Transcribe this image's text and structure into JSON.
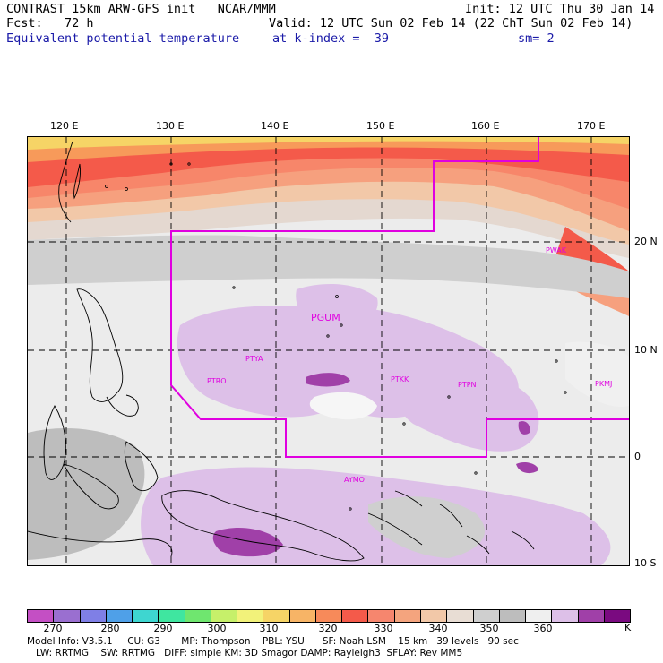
{
  "header": {
    "title": "CONTRAST 15km ARW-GFS init   NCAR/MMM",
    "init": "Init: 12 UTC Thu 30 Jan 14",
    "fcst": "Fcst:   72 h",
    "valid": "Valid: 12 UTC Sun 02 Feb 14 (22 ChT Sun 02 Feb 14)",
    "field": "Equivalent potential temperature",
    "level": "at k-index =  39",
    "sm": "sm= 2"
  },
  "map": {
    "lon_ticks": [
      "120 E",
      "130 E",
      "140 E",
      "150 E",
      "160 E",
      "170 E"
    ],
    "lat_ticks": [
      "20 N",
      "10 N",
      "0",
      "10 S"
    ],
    "stations": [
      {
        "id": "PGUM",
        "label": "PGUM"
      },
      {
        "id": "PWAK",
        "label": "PWAK"
      },
      {
        "id": "PTYA",
        "label": "PTYA"
      },
      {
        "id": "PTRO",
        "label": "PTRO"
      },
      {
        "id": "PTKK",
        "label": "PTKK"
      },
      {
        "id": "PTPN",
        "label": "PTPN"
      },
      {
        "id": "PKMJ",
        "label": "PKMJ"
      },
      {
        "id": "AYMO",
        "label": "AYMO"
      }
    ],
    "domain_color": "#e000e0"
  },
  "colorbar": {
    "colors": [
      "#c44fc4",
      "#9a6fd0",
      "#7f7fe6",
      "#4fa0e8",
      "#3ed6d0",
      "#3fe6a0",
      "#6fe66f",
      "#c6f06a",
      "#f2f27a",
      "#f6d466",
      "#f7b466",
      "#f78a5a",
      "#f45a4a",
      "#f6866e",
      "#f4a47e",
      "#f2c8a8",
      "#e8ddd4",
      "#cfcfcf",
      "#bdbdbd",
      "#efefef",
      "#ddc0e8",
      "#a040a8",
      "#7a0a80"
    ],
    "labels": [
      "270",
      "280",
      "290",
      "300",
      "310",
      "320",
      "330",
      "340",
      "350",
      "360"
    ],
    "unit": "K"
  },
  "model_info": {
    "line1": "Model Info: V3.5.1     CU: G3       MP: Thompson    PBL: YSU      SF: Noah LSM    15 km   39 levels   90 sec",
    "line2": "   LW: RRTMG    SW: RRTMG   DIFF: simple KM: 3D Smagor DAMP: Rayleigh3  SFLAY: Rev MM5"
  }
}
